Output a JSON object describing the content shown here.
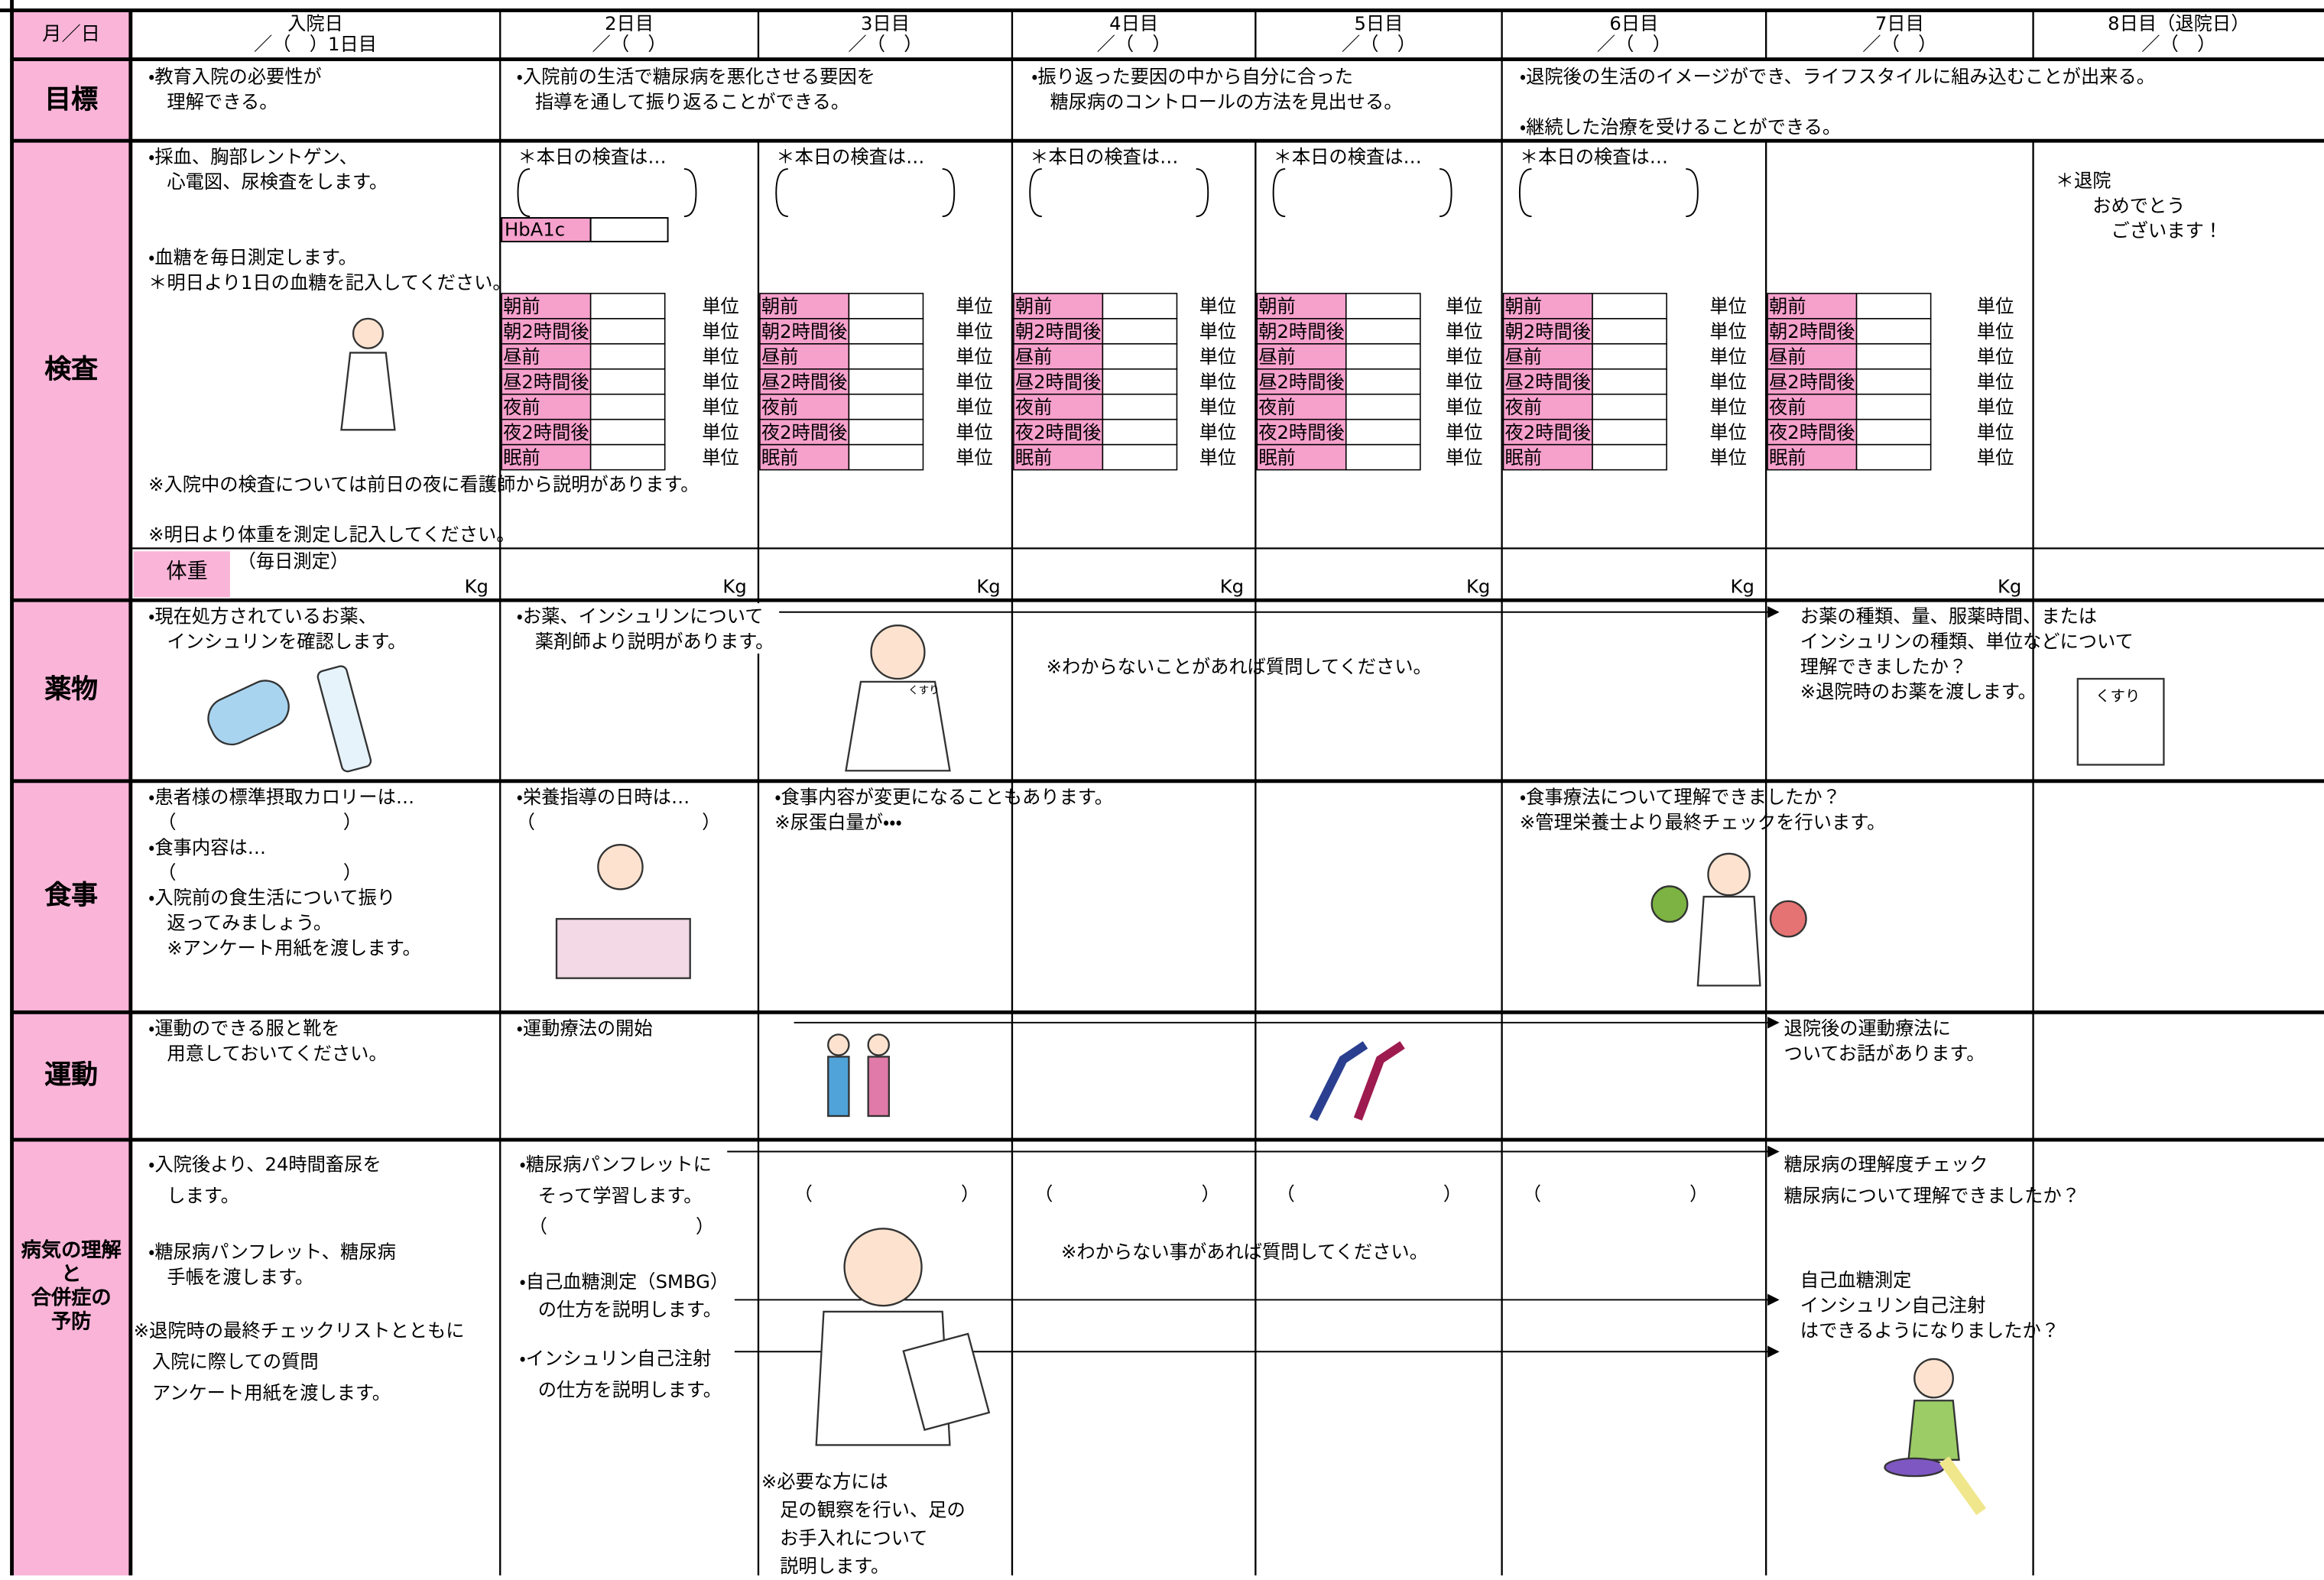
{
  "header": {
    "label": "月／日",
    "days": [
      {
        "name": "入院日",
        "date": "／（　）1日目"
      },
      {
        "name": "2日目",
        "date": "／（　）"
      },
      {
        "name": "3日目",
        "date": "／（　）"
      },
      {
        "name": "4日目",
        "date": "／（　）"
      },
      {
        "name": "5日目",
        "date": "／（　）"
      },
      {
        "name": "6日目",
        "date": "／（　）"
      },
      {
        "name": "7日目",
        "date": "／（　）"
      },
      {
        "name": "8日目（退院日）",
        "date": "／（　）"
      }
    ]
  },
  "goals": {
    "label": "目標",
    "items": [
      "・教育入院の必要性が\n　理解できる。",
      "・入院前の生活で糖尿病を悪化させる要因を\n　指導を通して振り返ることができる。",
      "・振り返った要因の中から自分に合った\n　糖尿病のコントロールの方法を見出せる。",
      "・退院後の生活のイメージができ、ライフスタイルに組み込むことが出来る。",
      "・継続した治療を受けることができる。"
    ]
  },
  "exams": {
    "label": "検査",
    "day1": [
      "・採血、胸部レントゲン、\n　心電図、尿検査をします。",
      "・血糖を毎日測定します。\n＊明日より1日の血糖を記入してください。"
    ],
    "prompt": "＊本日の検査は…",
    "hba1c": "HbA1c",
    "glucose_times": [
      "朝前",
      "朝2時間後",
      "昼前",
      "昼2時間後",
      "夜前",
      "夜2時間後",
      "眠前"
    ],
    "unit": "単位",
    "discharge": "＊退院\n　　おめでとう\n　　　ございます！",
    "notes": [
      "※入院中の検査については前日の夜に看護師から説明があります。",
      "※明日より体重を測定し記入してください。"
    ],
    "weight_label": "体重",
    "weight_note": "（毎日測定）",
    "weight_unit": "Kg"
  },
  "medicine": {
    "label": "薬物",
    "day1": "・現在処方されているお薬、\n　インシュリンを確認します。",
    "day2": "・お薬、インシュリンについて\n　薬剤師より説明があります。",
    "middle": "※わからないことがあれば質問してください。",
    "day7": "お薬の種類、量、服薬時間、または\nインシュリンの種類、単位などについて\n理解できましたか？\n※退院時のお薬を渡します。",
    "bag_label": "くすり"
  },
  "meals": {
    "label": "食事",
    "day1": "・患者様の標準摂取カロリーは…\n　（　　　　　　　　　）\n・食事内容は…\n　（　　　　　　　　　）\n・入院前の食生活について振り\n　返ってみましょう。\n　※アンケート用紙を渡します。",
    "day2": "・栄養指導の日時は…\n（　　　　　　　　　）",
    "day3": "・食事内容が変更になることもあります。\n※尿蛋白量が・・・",
    "day6": "・食事療法について理解できましたか？\n※管理栄養士より最終チェックを行います。"
  },
  "exercise": {
    "label": "運動",
    "day1": "・運動のできる服と靴を\n　用意しておいてください。",
    "day2": "・運動療法の開始",
    "day7": "退院後の運動療法に\nついてお話があります。"
  },
  "disease": {
    "label": "病気の理解\nと\n合併症の\n予防",
    "day1": [
      "・入院後より、24時間畜尿を\n　します。",
      "・糖尿病パンフレット、糖尿病\n　手帳を渡します。",
      "※退院時の最終チェックリストとともに\n　入院に際しての質問\n　アンケート用紙を渡します。"
    ],
    "day2": [
      "・糖尿病パンフレットに\n　そって学習します。\n　（　　　　　　　　）",
      "・自己血糖測定（SMBG）\n　の仕方を説明します。",
      "・インシュリン自己注射\n　の仕方を説明します。"
    ],
    "blank": "（　　　　　　　　）",
    "middle": "※わからない事があれば質問してください。",
    "day3": "※必要な方には\n　足の観察を行い、足の\n　お手入れについて\n　説明します。",
    "day7": [
      "糖尿病の理解度チェック\n糖尿病について理解できましたか？",
      "自己血糖測定\nインシュリン自己注射\nはできるようになりましたか？"
    ]
  }
}
